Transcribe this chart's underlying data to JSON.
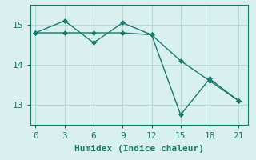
{
  "line1_x": [
    0,
    3,
    6,
    9,
    12,
    15,
    18,
    21
  ],
  "line1_y": [
    14.8,
    14.8,
    14.8,
    14.8,
    14.75,
    14.1,
    13.6,
    13.1
  ],
  "line2_x": [
    0,
    3,
    6,
    9,
    12,
    15,
    18,
    21
  ],
  "line2_y": [
    14.8,
    15.1,
    14.55,
    15.05,
    14.75,
    12.75,
    13.65,
    13.1
  ],
  "line_color": "#1a7a6e",
  "bg_color": "#d8f0ee",
  "grid_color": "#b8d8d4",
  "spine_color": "#1a7a6e",
  "xlabel": "Humidex (Indice chaleur)",
  "xlim": [
    -0.5,
    22
  ],
  "ylim": [
    12.5,
    15.5
  ],
  "xticks": [
    0,
    3,
    6,
    9,
    12,
    15,
    18,
    21
  ],
  "yticks": [
    13,
    14,
    15
  ],
  "marker": "D",
  "markersize": 3,
  "linewidth": 1.0,
  "xlabel_fontsize": 8,
  "tick_fontsize": 8
}
